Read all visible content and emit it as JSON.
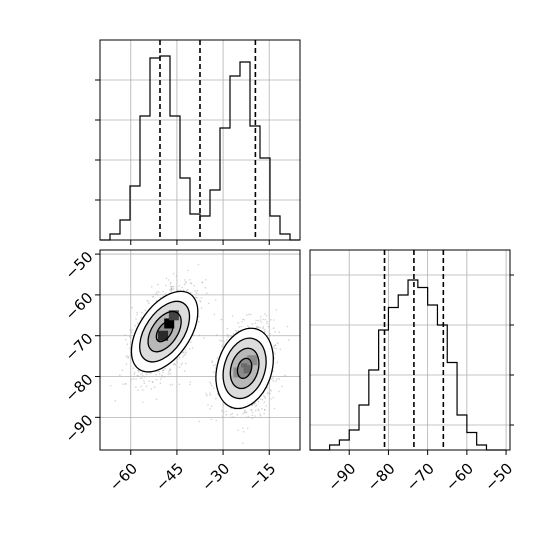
{
  "chart_data": [
    {
      "type": "histogram",
      "panel": "top-left",
      "parameter_index": 0,
      "xlim": [
        -70,
        -5
      ],
      "bins": [
        {
          "x0": -70,
          "x1": -66.75,
          "count": 0
        },
        {
          "x0": -66.75,
          "x1": -63.5,
          "count": 3
        },
        {
          "x0": -63.5,
          "x1": -60.25,
          "count": 10
        },
        {
          "x0": -60.25,
          "x1": -57,
          "count": 27
        },
        {
          "x0": -57,
          "x1": -53.75,
          "count": 62
        },
        {
          "x0": -53.75,
          "x1": -50.5,
          "count": 91
        },
        {
          "x0": -50.5,
          "x1": -47.25,
          "count": 92
        },
        {
          "x0": -47.25,
          "x1": -44,
          "count": 62
        },
        {
          "x0": -44,
          "x1": -40.75,
          "count": 31
        },
        {
          "x0": -40.75,
          "x1": -37.5,
          "count": 13
        },
        {
          "x0": -37.5,
          "x1": -34.25,
          "count": 12
        },
        {
          "x0": -34.25,
          "x1": -31,
          "count": 25
        },
        {
          "x0": -31,
          "x1": -27.75,
          "count": 56
        },
        {
          "x0": -27.75,
          "x1": -24.5,
          "count": 82
        },
        {
          "x0": -24.5,
          "x1": -21.25,
          "count": 89
        },
        {
          "x0": -21.25,
          "x1": -18,
          "count": 57
        },
        {
          "x0": -18,
          "x1": -14.75,
          "count": 41
        },
        {
          "x0": -14.75,
          "x1": -11.5,
          "count": 12
        },
        {
          "x0": -11.5,
          "x1": -8.25,
          "count": 3
        },
        {
          "x0": -8.25,
          "x1": -5,
          "count": 0
        }
      ],
      "ylim": [
        0,
        100
      ],
      "quantile_lines": [
        -50.5,
        -37.5,
        -19.5
      ],
      "xticks": [
        -60,
        -45,
        -30,
        -15
      ],
      "show_tick_labels": false,
      "grid": true
    },
    {
      "type": "histogram",
      "panel": "bottom-right",
      "parameter_index": 1,
      "xlim": [
        -100,
        -49
      ],
      "bins": [
        {
          "x0": -100,
          "x1": -97.5,
          "count": 0
        },
        {
          "x0": -97.5,
          "x1": -95,
          "count": 0
        },
        {
          "x0": -95,
          "x1": -92.5,
          "count": 2
        },
        {
          "x0": -92.5,
          "x1": -90,
          "count": 4
        },
        {
          "x0": -90,
          "x1": -87.5,
          "count": 8
        },
        {
          "x0": -87.5,
          "x1": -85,
          "count": 18
        },
        {
          "x0": -85,
          "x1": -82.5,
          "count": 32
        },
        {
          "x0": -82.5,
          "x1": -80,
          "count": 48
        },
        {
          "x0": -80,
          "x1": -77.5,
          "count": 57
        },
        {
          "x0": -77.5,
          "x1": -75,
          "count": 62
        },
        {
          "x0": -75,
          "x1": -72.5,
          "count": 68
        },
        {
          "x0": -72.5,
          "x1": -70,
          "count": 65
        },
        {
          "x0": -70,
          "x1": -67.5,
          "count": 58
        },
        {
          "x0": -67.5,
          "x1": -65,
          "count": 50
        },
        {
          "x0": -65,
          "x1": -62.5,
          "count": 35
        },
        {
          "x0": -62.5,
          "x1": -60,
          "count": 14
        },
        {
          "x0": -60,
          "x1": -57.5,
          "count": 7
        },
        {
          "x0": -57.5,
          "x1": -55,
          "count": 2
        },
        {
          "x0": -55,
          "x1": -52.5,
          "count": 0
        },
        {
          "x0": -52.5,
          "x1": -50,
          "count": 0
        }
      ],
      "ylim": [
        0,
        80
      ],
      "quantile_lines": [
        -81,
        -73.5,
        -66
      ],
      "xticks": [
        -90,
        -80,
        -70,
        -60,
        -50
      ],
      "xtick_labels": [
        "−90",
        "−80",
        "−70",
        "−60",
        "−50"
      ],
      "grid": true
    },
    {
      "type": "scatter-contour",
      "panel": "bottom-left",
      "xlim": [
        -70,
        -5
      ],
      "ylim": [
        -98,
        -49
      ],
      "xticks": [
        -60,
        -45,
        -30,
        -15
      ],
      "xtick_labels": [
        "−60",
        "−45",
        "−30",
        "−15"
      ],
      "yticks": [
        -50,
        -60,
        -70,
        -80,
        -90
      ],
      "ytick_labels": [
        "−50",
        "−60",
        "−70",
        "−80",
        "−90"
      ],
      "grid": true,
      "clusters": [
        {
          "center": [
            -49,
            -69
          ],
          "sigma_major": 6.2,
          "sigma_minor": 3.6,
          "angle_deg": 48
        },
        {
          "center": [
            -23,
            -78
          ],
          "sigma_major": 5.2,
          "sigma_minor": 4.2,
          "angle_deg": 68
        }
      ],
      "contour_levels_sigma": [
        0.5,
        1.0,
        1.5,
        2.0
      ],
      "density_peaks": [
        {
          "x": -47.5,
          "y": -67,
          "shade": "#000000"
        },
        {
          "x": -49.5,
          "y": -70,
          "shade": "#2a2a2a"
        },
        {
          "x": -46,
          "y": -65,
          "shade": "#444444"
        },
        {
          "x": -22.5,
          "y": -78,
          "shade": "#6a6a6a"
        },
        {
          "x": -25,
          "y": -79,
          "shade": "#8a8a8a"
        },
        {
          "x": -20.5,
          "y": -76,
          "shade": "#8a8a8a"
        }
      ],
      "point_color": "#b0b0b0"
    }
  ]
}
